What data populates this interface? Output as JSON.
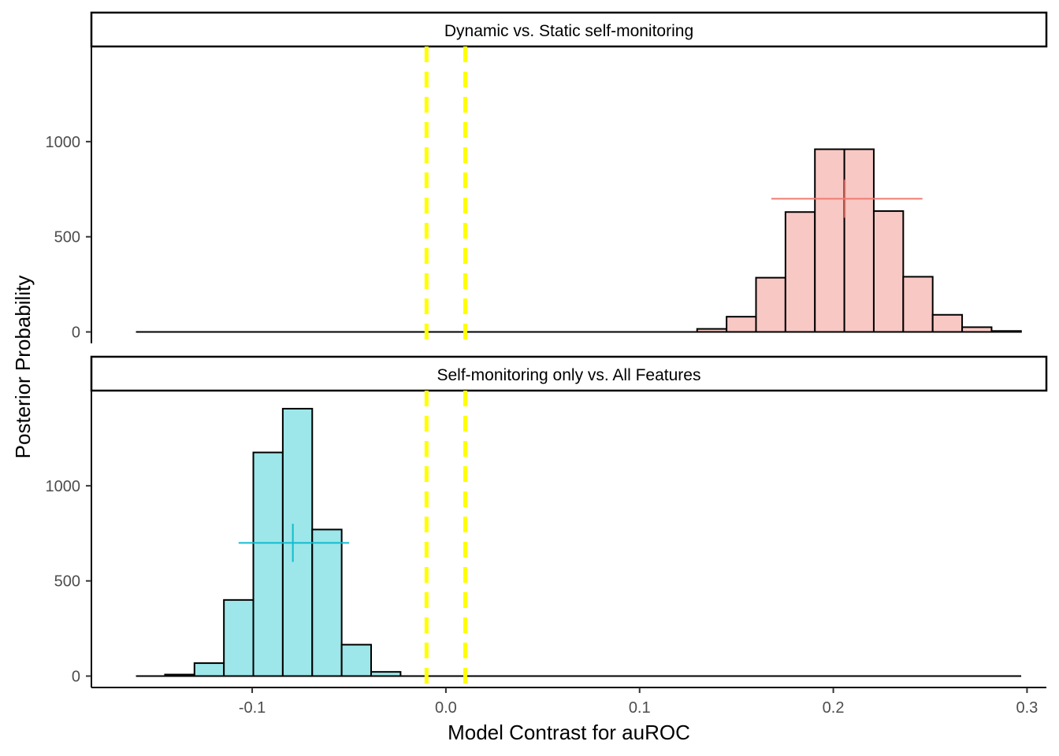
{
  "chart_data": {
    "type": "bar",
    "xlabel": "Model Contrast for auROC",
    "ylabel": "Posterior Probability",
    "xlim": [
      -0.183,
      0.31
    ],
    "x_ticks": [
      -0.1,
      0.0,
      0.1,
      0.2,
      0.3
    ],
    "x_tick_labels": [
      "-0.1",
      "0.0",
      "0.1",
      "0.2",
      "0.3"
    ],
    "y_ticks": [
      0,
      500,
      1000
    ],
    "y_tick_labels": [
      "0",
      "500",
      "1000"
    ],
    "ylim": [
      -60,
      1500
    ],
    "rope": [
      -0.01,
      0.01
    ],
    "rope_color": "#ffff00",
    "bin_width": 0.0152,
    "baseline_range": [
      -0.16,
      0.297
    ],
    "grid": false,
    "legend": "none",
    "panels": [
      {
        "strip_label": "Dynamic vs. Static self-monitoring",
        "fill": "#f8c8c4",
        "summary_color": "#f07b72",
        "bins": [
          {
            "x": 0.1373,
            "count": 16
          },
          {
            "x": 0.1525,
            "count": 80
          },
          {
            "x": 0.1677,
            "count": 285
          },
          {
            "x": 0.1829,
            "count": 630
          },
          {
            "x": 0.1981,
            "count": 960
          },
          {
            "x": 0.2133,
            "count": 960
          },
          {
            "x": 0.2285,
            "count": 635
          },
          {
            "x": 0.2437,
            "count": 290
          },
          {
            "x": 0.2589,
            "count": 90
          },
          {
            "x": 0.2741,
            "count": 25
          },
          {
            "x": 0.2893,
            "count": 5
          }
        ],
        "summary": {
          "point": 0.206,
          "interval": [
            0.168,
            0.246
          ],
          "y": 700,
          "vline": [
            600,
            800
          ]
        }
      },
      {
        "strip_label": "Self-monitoring only vs. All Features",
        "fill": "#9de6e9",
        "summary_color": "#10bcd0",
        "bins": [
          {
            "x": -0.1374,
            "count": 8
          },
          {
            "x": -0.1222,
            "count": 68
          },
          {
            "x": -0.107,
            "count": 400
          },
          {
            "x": -0.0918,
            "count": 1175
          },
          {
            "x": -0.0766,
            "count": 1405
          },
          {
            "x": -0.0614,
            "count": 770
          },
          {
            "x": -0.0462,
            "count": 165
          },
          {
            "x": -0.031,
            "count": 22
          }
        ],
        "summary": {
          "point": -0.079,
          "interval": [
            -0.107,
            -0.05
          ],
          "y": 700,
          "vline": [
            600,
            800
          ]
        }
      }
    ]
  }
}
